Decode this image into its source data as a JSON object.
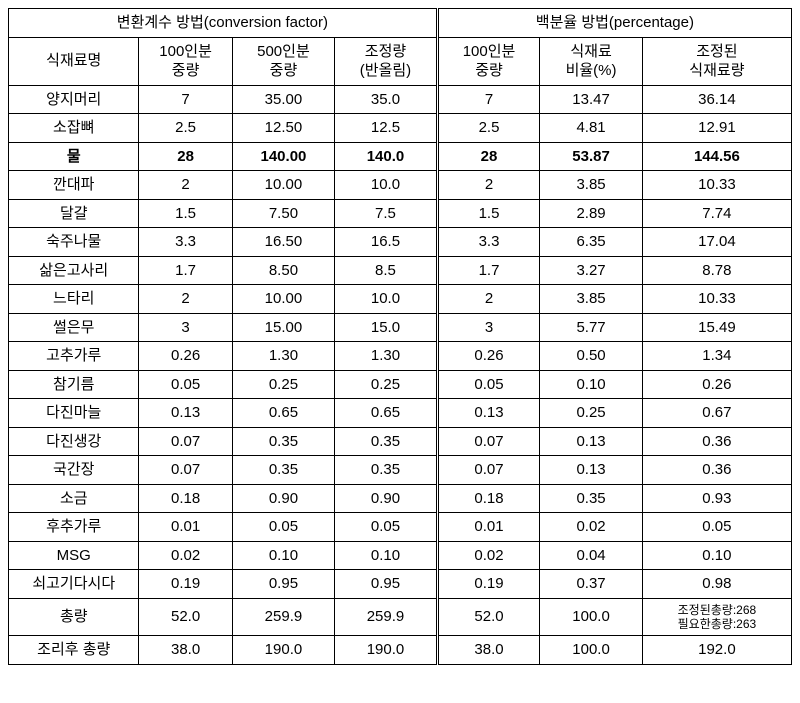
{
  "header": {
    "left_title": "변환계수 방법(conversion factor)",
    "right_title": "백분율 방법(percentage)",
    "col_name": "식재료명",
    "col_100": "100인분\n중량",
    "col_500": "500인분\n중량",
    "col_adj": "조정량\n(반올림)",
    "col_p100": "100인분\n중량",
    "col_ratio": "식재료\n비율(%)",
    "col_padj": "조정된\n식재료량"
  },
  "rows": [
    {
      "name": "양지머리",
      "w100": "7",
      "w500": "35.00",
      "adj": "35.0",
      "p100": "7",
      "ratio": "13.47",
      "padj": "36.14"
    },
    {
      "name": "소잡뼈",
      "w100": "2.5",
      "w500": "12.50",
      "adj": "12.5",
      "p100": "2.5",
      "ratio": "4.81",
      "padj": "12.91"
    },
    {
      "name": "물",
      "w100": "28",
      "w500": "140.00",
      "adj": "140.0",
      "p100": "28",
      "ratio": "53.87",
      "padj": "144.56",
      "bold": true
    },
    {
      "name": "깐대파",
      "w100": "2",
      "w500": "10.00",
      "adj": "10.0",
      "p100": "2",
      "ratio": "3.85",
      "padj": "10.33"
    },
    {
      "name": "달걀",
      "w100": "1.5",
      "w500": "7.50",
      "adj": "7.5",
      "p100": "1.5",
      "ratio": "2.89",
      "padj": "7.74"
    },
    {
      "name": "숙주나물",
      "w100": "3.3",
      "w500": "16.50",
      "adj": "16.5",
      "p100": "3.3",
      "ratio": "6.35",
      "padj": "17.04"
    },
    {
      "name": "삶은고사리",
      "w100": "1.7",
      "w500": "8.50",
      "adj": "8.5",
      "p100": "1.7",
      "ratio": "3.27",
      "padj": "8.78"
    },
    {
      "name": "느타리",
      "w100": "2",
      "w500": "10.00",
      "adj": "10.0",
      "p100": "2",
      "ratio": "3.85",
      "padj": "10.33"
    },
    {
      "name": "썰은무",
      "w100": "3",
      "w500": "15.00",
      "adj": "15.0",
      "p100": "3",
      "ratio": "5.77",
      "padj": "15.49"
    },
    {
      "name": "고추가루",
      "w100": "0.26",
      "w500": "1.30",
      "adj": "1.30",
      "p100": "0.26",
      "ratio": "0.50",
      "padj": "1.34"
    },
    {
      "name": "참기름",
      "w100": "0.05",
      "w500": "0.25",
      "adj": "0.25",
      "p100": "0.05",
      "ratio": "0.10",
      "padj": "0.26"
    },
    {
      "name": "다진마늘",
      "w100": "0.13",
      "w500": "0.65",
      "adj": "0.65",
      "p100": "0.13",
      "ratio": "0.25",
      "padj": "0.67"
    },
    {
      "name": "다진생강",
      "w100": "0.07",
      "w500": "0.35",
      "adj": "0.35",
      "p100": "0.07",
      "ratio": "0.13",
      "padj": "0.36"
    },
    {
      "name": "국간장",
      "w100": "0.07",
      "w500": "0.35",
      "adj": "0.35",
      "p100": "0.07",
      "ratio": "0.13",
      "padj": "0.36"
    },
    {
      "name": "소금",
      "w100": "0.18",
      "w500": "0.90",
      "adj": "0.90",
      "p100": "0.18",
      "ratio": "0.35",
      "padj": "0.93"
    },
    {
      "name": "후추가루",
      "w100": "0.01",
      "w500": "0.05",
      "adj": "0.05",
      "p100": "0.01",
      "ratio": "0.02",
      "padj": "0.05"
    },
    {
      "name": "MSG",
      "w100": "0.02",
      "w500": "0.10",
      "adj": "0.10",
      "p100": "0.02",
      "ratio": "0.04",
      "padj": "0.10"
    },
    {
      "name": "쇠고기다시다",
      "w100": "0.19",
      "w500": "0.95",
      "adj": "0.95",
      "p100": "0.19",
      "ratio": "0.37",
      "padj": "0.98"
    }
  ],
  "totals": {
    "total_label": "총량",
    "t_w100": "52.0",
    "t_w500": "259.9",
    "t_adj": "259.9",
    "t_p100": "52.0",
    "t_ratio": "100.0",
    "t_padj_line1": "조정된총량:268",
    "t_padj_line2": "필요한총량:263",
    "cooked_label": "조리후 총량",
    "c_w100": "38.0",
    "c_w500": "190.0",
    "c_adj": "190.0",
    "c_p100": "38.0",
    "c_ratio": "100.0",
    "c_padj": "192.0"
  }
}
